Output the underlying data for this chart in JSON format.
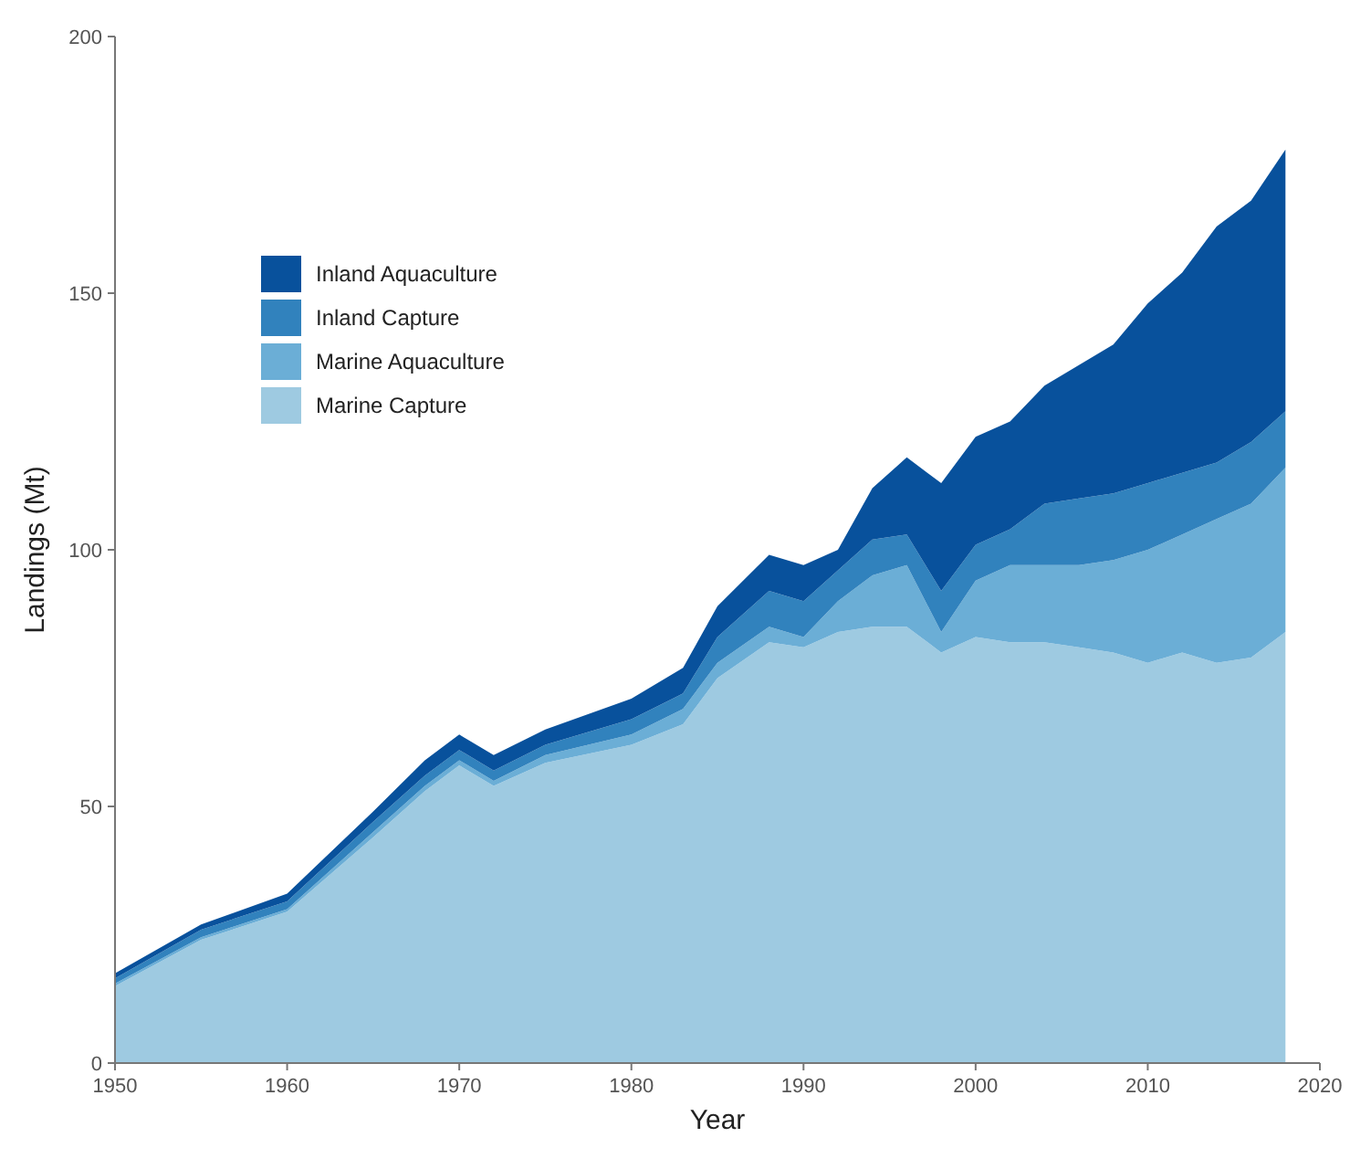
{
  "chart_data": {
    "type": "area",
    "stacked": true,
    "xlabel": "Year",
    "ylabel": "Landings (Mt)",
    "x": [
      1950,
      1955,
      1960,
      1965,
      1968,
      1970,
      1972,
      1975,
      1980,
      1983,
      1985,
      1988,
      1990,
      1992,
      1994,
      1996,
      1998,
      2000,
      2002,
      2004,
      2006,
      2008,
      2010,
      2012,
      2014,
      2016,
      2018
    ],
    "series": [
      {
        "name": "Marine Capture",
        "color": "#9ecae1",
        "values": [
          15,
          24,
          29.5,
          44,
          53,
          58,
          54,
          58.5,
          62,
          66,
          75,
          82,
          81,
          84,
          85,
          85,
          80,
          83,
          82,
          82,
          81,
          80,
          78,
          80,
          78,
          79,
          84
        ]
      },
      {
        "name": "Marine Aquaculture",
        "color": "#6baed6",
        "values": [
          0.5,
          0.5,
          0.5,
          1,
          1,
          1,
          1,
          1.5,
          2,
          3,
          3,
          3,
          2,
          6,
          10,
          12,
          4,
          11,
          15,
          15,
          16,
          18,
          22,
          23,
          28,
          30,
          32
        ]
      },
      {
        "name": "Inland Capture",
        "color": "#3182bd",
        "values": [
          1,
          1.5,
          1.5,
          2,
          2,
          2,
          2,
          2,
          3,
          3,
          5,
          7,
          7,
          6,
          7,
          6,
          8,
          7,
          7,
          12,
          13,
          13,
          13,
          12,
          11,
          12,
          11
        ]
      },
      {
        "name": "Inland Aquaculture",
        "color": "#08519c",
        "values": [
          1,
          1,
          1.5,
          2,
          3,
          3,
          3,
          3,
          4,
          5,
          6,
          7,
          7,
          4,
          10,
          15,
          21,
          21,
          21,
          23,
          26,
          29,
          35,
          39,
          46,
          47,
          51
        ]
      }
    ],
    "xlim": [
      1950,
      2020
    ],
    "xticks": [
      1950,
      1960,
      1970,
      1980,
      1990,
      2000,
      2010,
      2020
    ],
    "ylim": [
      0,
      200
    ],
    "yticks": [
      0,
      50,
      100,
      150,
      200
    ],
    "legend": "top left",
    "grid": false
  }
}
